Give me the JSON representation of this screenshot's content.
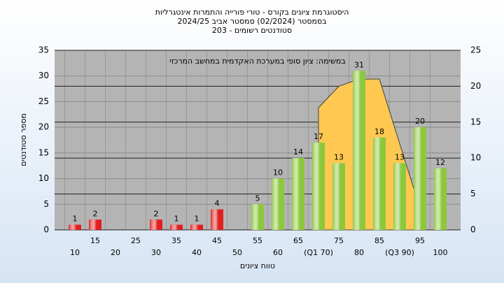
{
  "chart_data": {
    "type": "bar",
    "title": "היסטוגרמת ציונים בקורס - טורי פורייה והתמרות אינטגרליות",
    "subtitle": "בסמסטר  (02/2024)  סמסטר אביב 2024/25",
    "subtitle2": "סטודנטים רשומים - 203",
    "annotation": "במשימה: ציון סופי במערכת האקדמית במחשב המרכזי",
    "x_label": "טווח ציונים",
    "y_label": "מספר סטודנטים",
    "categories": [
      10,
      15,
      20,
      25,
      30,
      35,
      40,
      45,
      50,
      55,
      60,
      65,
      "(Q1 70)",
      75,
      80,
      85,
      "(Q3 90)",
      95,
      100
    ],
    "values": [
      1,
      2,
      null,
      null,
      2,
      1,
      1,
      4,
      null,
      5,
      10,
      14,
      17,
      13,
      31,
      18,
      13,
      20,
      12
    ],
    "colors": [
      "#e02020",
      "#e02020",
      "#e02020",
      "#e02020",
      "#e02020",
      "#e02020",
      "#e02020",
      "#e02020",
      "#e02020",
      "#8cc83c",
      "#8cc83c",
      "#8cc83c",
      "#8cc83c",
      "#8cc83c",
      "#8cc83c",
      "#8cc83c",
      "#8cc83c",
      "#8cc83c",
      "#8cc83c"
    ],
    "area": {
      "axis": "y2",
      "color": "#ffc850",
      "values": [
        null,
        null,
        null,
        null,
        null,
        null,
        null,
        null,
        null,
        null,
        null,
        null,
        17,
        20,
        21,
        21,
        12,
        3,
        null
      ]
    },
    "ylim": [
      0,
      35
    ],
    "yticks": [
      0,
      5,
      10,
      15,
      20,
      25,
      30,
      35
    ],
    "y2lim": [
      0,
      25
    ],
    "y2ticks": [
      0,
      5,
      10,
      15,
      20,
      25
    ],
    "grid": true
  }
}
